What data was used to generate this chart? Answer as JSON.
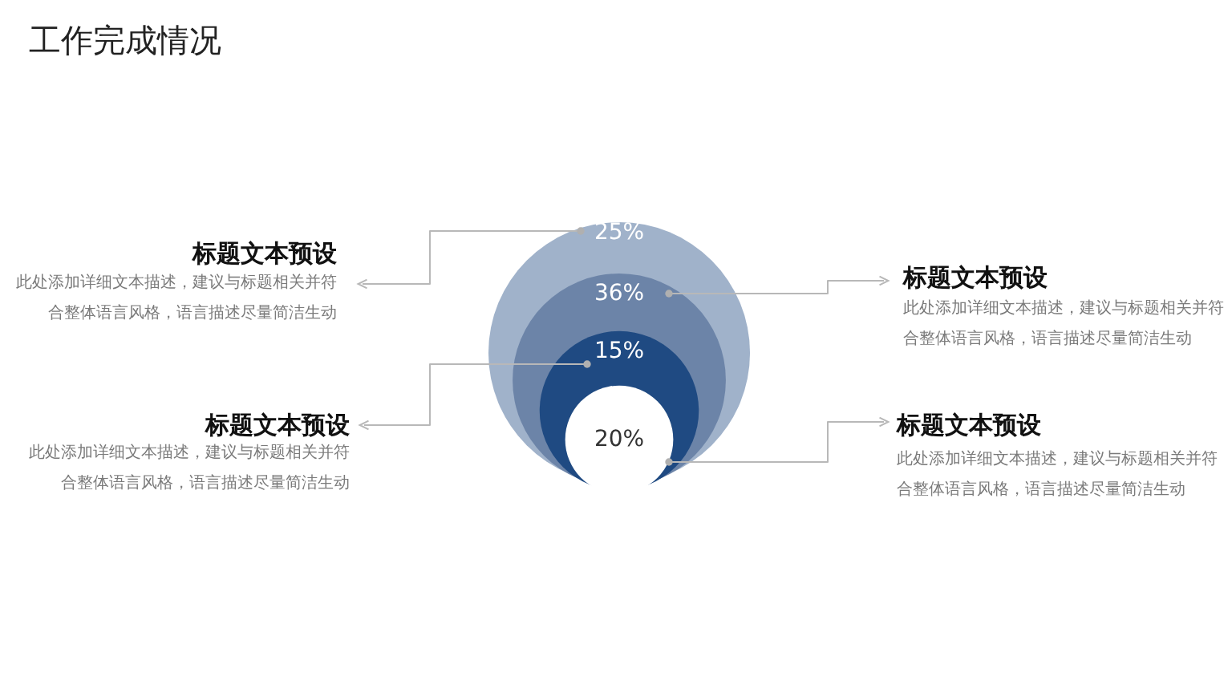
{
  "chart_data": {
    "type": "other",
    "title": "工作完成情况",
    "categories": [
      "标题文本预设",
      "标题文本预设",
      "标题文本预设",
      "标题文本预设"
    ],
    "values": [
      25,
      36,
      15,
      20
    ],
    "value_labels": [
      "25%",
      "36%",
      "15%",
      "20%"
    ],
    "colors": [
      "#a0b2ca",
      "#6c84a8",
      "#1f4a82",
      "#ffffff"
    ],
    "annotations": [
      "此处添加详细文本描述，建议与标题相关并符合整体语言风格，语言描述尽量简洁生动",
      "此处添加详细文本描述，建议与标题相关并符合整体语言风格，语言描述尽量简洁生动",
      "此处添加详细文本描述，建议与标题相关并符合整体语言风格，语言描述尽量简洁生动",
      "此处添加详细文本描述，建议与标题相关并符合整体语言风格，语言描述尽量简洁生动"
    ]
  }
}
